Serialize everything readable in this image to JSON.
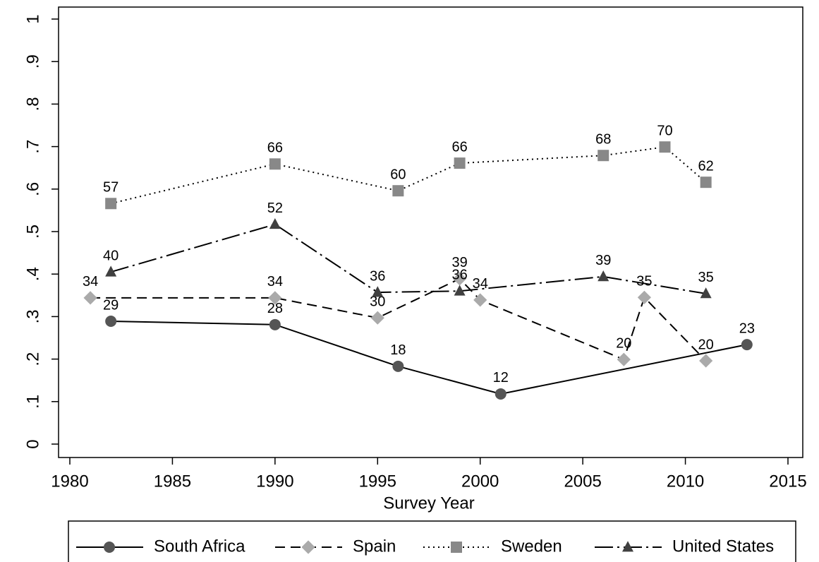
{
  "chart_data": {
    "type": "line",
    "xlabel": "Survey Year",
    "xlim": [
      1980,
      2015
    ],
    "xticks": [
      1980,
      1985,
      1990,
      1995,
      2000,
      2005,
      2010,
      2015
    ],
    "ylim": [
      0,
      1
    ],
    "yticks": [
      0,
      {
        "value": 0.1,
        "label": ".1"
      },
      {
        "value": 0.2,
        "label": ".2"
      },
      {
        "value": 0.3,
        "label": ".3"
      },
      {
        "value": 0.4,
        "label": ".4"
      },
      {
        "value": 0.5,
        "label": ".5"
      },
      {
        "value": 0.6,
        "label": ".6"
      },
      {
        "value": 0.7,
        "label": ".7"
      },
      {
        "value": 0.8,
        "label": ".8"
      },
      {
        "value": 0.9,
        "label": ".9"
      },
      1
    ],
    "legend": "bottom",
    "series": [
      {
        "name": "South Africa",
        "color": "#555555",
        "marker": "circle",
        "dash": "solid",
        "x": [
          1982,
          1990,
          1996,
          2001,
          2013
        ],
        "values": [
          0.289,
          0.281,
          0.183,
          0.118,
          0.234
        ],
        "value_labels": [
          "29",
          "28",
          "18",
          "12",
          "23"
        ]
      },
      {
        "name": "Spain",
        "color": "#aaaaaa",
        "marker": "diamond",
        "dash": "dashed",
        "x": [
          1981,
          1990,
          1995,
          1999,
          2000,
          2007,
          2008,
          2011
        ],
        "values": [
          0.344,
          0.344,
          0.297,
          0.389,
          0.339,
          0.199,
          0.345,
          0.196
        ],
        "value_labels": [
          "34",
          "34",
          "30",
          "39",
          "34",
          "20",
          "35",
          "20"
        ]
      },
      {
        "name": "Sweden",
        "color": "#888888",
        "marker": "square",
        "dash": "dotted",
        "x": [
          1982,
          1990,
          1996,
          1999,
          2006,
          2009,
          2011
        ],
        "values": [
          0.566,
          0.659,
          0.596,
          0.661,
          0.679,
          0.699,
          0.616
        ],
        "value_labels": [
          "57",
          "66",
          "60",
          "66",
          "68",
          "70",
          "62"
        ]
      },
      {
        "name": "United States",
        "color": "#404040",
        "marker": "triangle",
        "dash": "longdashdot",
        "x": [
          1982,
          1990,
          1995,
          1999,
          2006,
          2011
        ],
        "values": [
          0.405,
          0.517,
          0.357,
          0.36,
          0.394,
          0.354
        ],
        "value_labels": [
          "40",
          "52",
          "36",
          "36",
          "39",
          "35"
        ]
      }
    ]
  }
}
